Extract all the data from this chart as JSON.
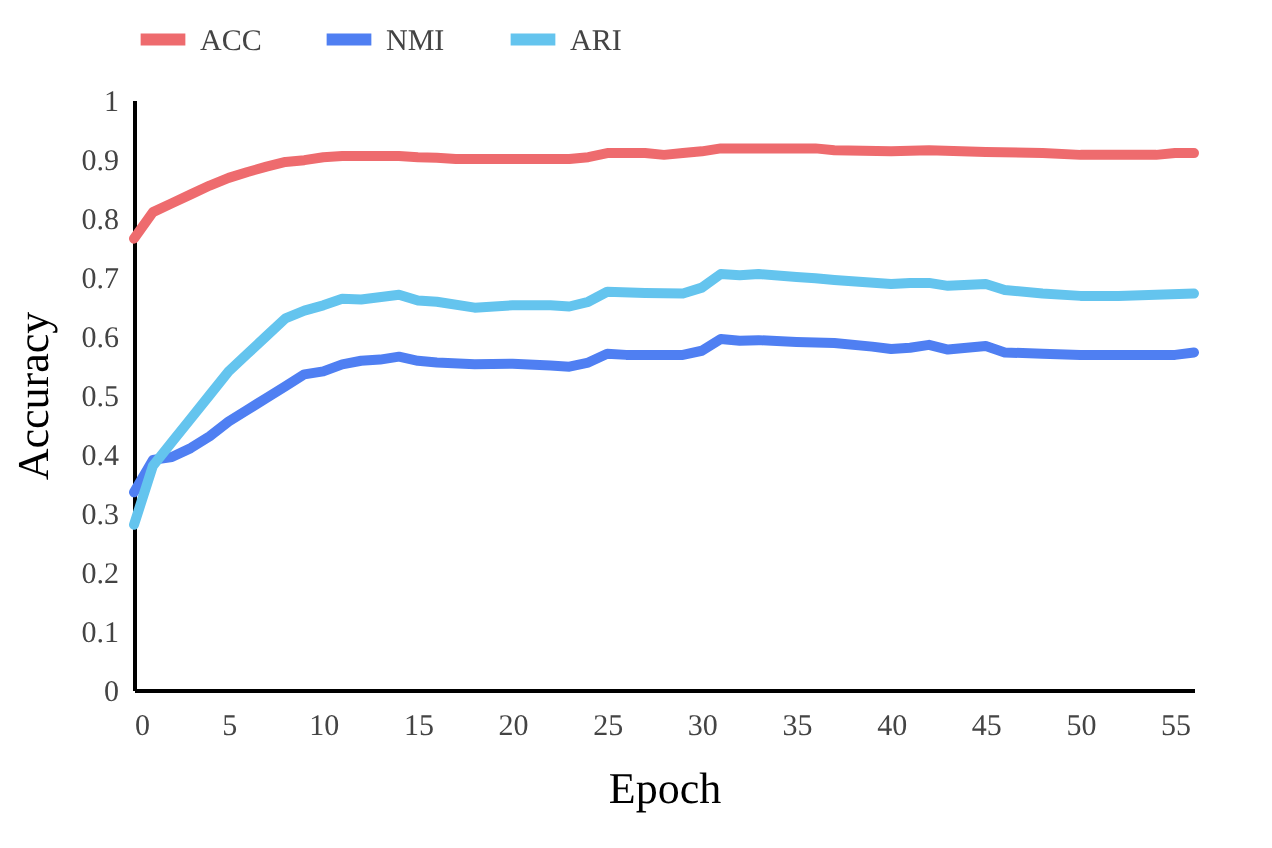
{
  "chart_data": {
    "type": "line",
    "xlabel": "Epoch",
    "ylabel": "Accuracy",
    "xlim": [
      0,
      56
    ],
    "xticks": [
      0,
      5,
      10,
      15,
      20,
      25,
      30,
      35,
      40,
      45,
      50,
      55
    ],
    "ylim": [
      0,
      1
    ],
    "yticks": [
      0,
      0.1,
      0.2,
      0.3,
      0.4,
      0.5,
      0.6,
      0.7,
      0.8,
      0.9,
      1
    ],
    "grid": false,
    "legend": "top",
    "marker": "none",
    "line_style": "solid",
    "series": [
      {
        "name": "ACC",
        "color": "#ee6b6e",
        "x": [
          0,
          1,
          2,
          3,
          4,
          5,
          6,
          7,
          8,
          9,
          10,
          11,
          14,
          15,
          16,
          17,
          23,
          24,
          25,
          27,
          28,
          29,
          30,
          31,
          36,
          37,
          40,
          42,
          45,
          48,
          50,
          54,
          55,
          56
        ],
        "values": [
          0.765,
          0.81,
          0.825,
          0.84,
          0.855,
          0.868,
          0.878,
          0.887,
          0.895,
          0.898,
          0.903,
          0.905,
          0.905,
          0.903,
          0.902,
          0.9,
          0.9,
          0.903,
          0.91,
          0.91,
          0.907,
          0.91,
          0.913,
          0.918,
          0.918,
          0.915,
          0.913,
          0.915,
          0.912,
          0.91,
          0.907,
          0.907,
          0.91,
          0.91
        ]
      },
      {
        "name": "NMI",
        "color": "#4f7ff2",
        "x": [
          0,
          1,
          2,
          3,
          4,
          5,
          6,
          7,
          8,
          9,
          10,
          11,
          12,
          13,
          14,
          15,
          16,
          18,
          20,
          22,
          23,
          24,
          25,
          26,
          29,
          30,
          31,
          32,
          33,
          35,
          37,
          39,
          40,
          41,
          42,
          43,
          45,
          46,
          48,
          50,
          55,
          56
        ],
        "values": [
          0.335,
          0.39,
          0.395,
          0.41,
          0.43,
          0.455,
          0.475,
          0.495,
          0.515,
          0.535,
          0.54,
          0.552,
          0.558,
          0.56,
          0.565,
          0.558,
          0.555,
          0.552,
          0.553,
          0.55,
          0.548,
          0.555,
          0.57,
          0.568,
          0.568,
          0.575,
          0.595,
          0.592,
          0.593,
          0.59,
          0.588,
          0.582,
          0.578,
          0.58,
          0.585,
          0.577,
          0.583,
          0.572,
          0.57,
          0.568,
          0.568,
          0.572
        ]
      },
      {
        "name": "ARI",
        "color": "#64c4ee",
        "x": [
          0,
          1,
          2,
          3,
          4,
          5,
          6,
          7,
          8,
          9,
          10,
          11,
          12,
          14,
          15,
          16,
          18,
          20,
          22,
          23,
          24,
          25,
          27,
          29,
          30,
          31,
          32,
          33,
          35,
          36,
          37,
          40,
          41,
          42,
          43,
          45,
          46,
          48,
          50,
          52,
          56
        ],
        "values": [
          0.28,
          0.38,
          0.42,
          0.46,
          0.5,
          0.54,
          0.57,
          0.6,
          0.63,
          0.643,
          0.652,
          0.663,
          0.662,
          0.67,
          0.66,
          0.658,
          0.648,
          0.652,
          0.652,
          0.65,
          0.658,
          0.675,
          0.673,
          0.672,
          0.682,
          0.705,
          0.703,
          0.705,
          0.7,
          0.698,
          0.695,
          0.688,
          0.69,
          0.69,
          0.685,
          0.688,
          0.678,
          0.672,
          0.668,
          0.668,
          0.672
        ]
      }
    ]
  }
}
